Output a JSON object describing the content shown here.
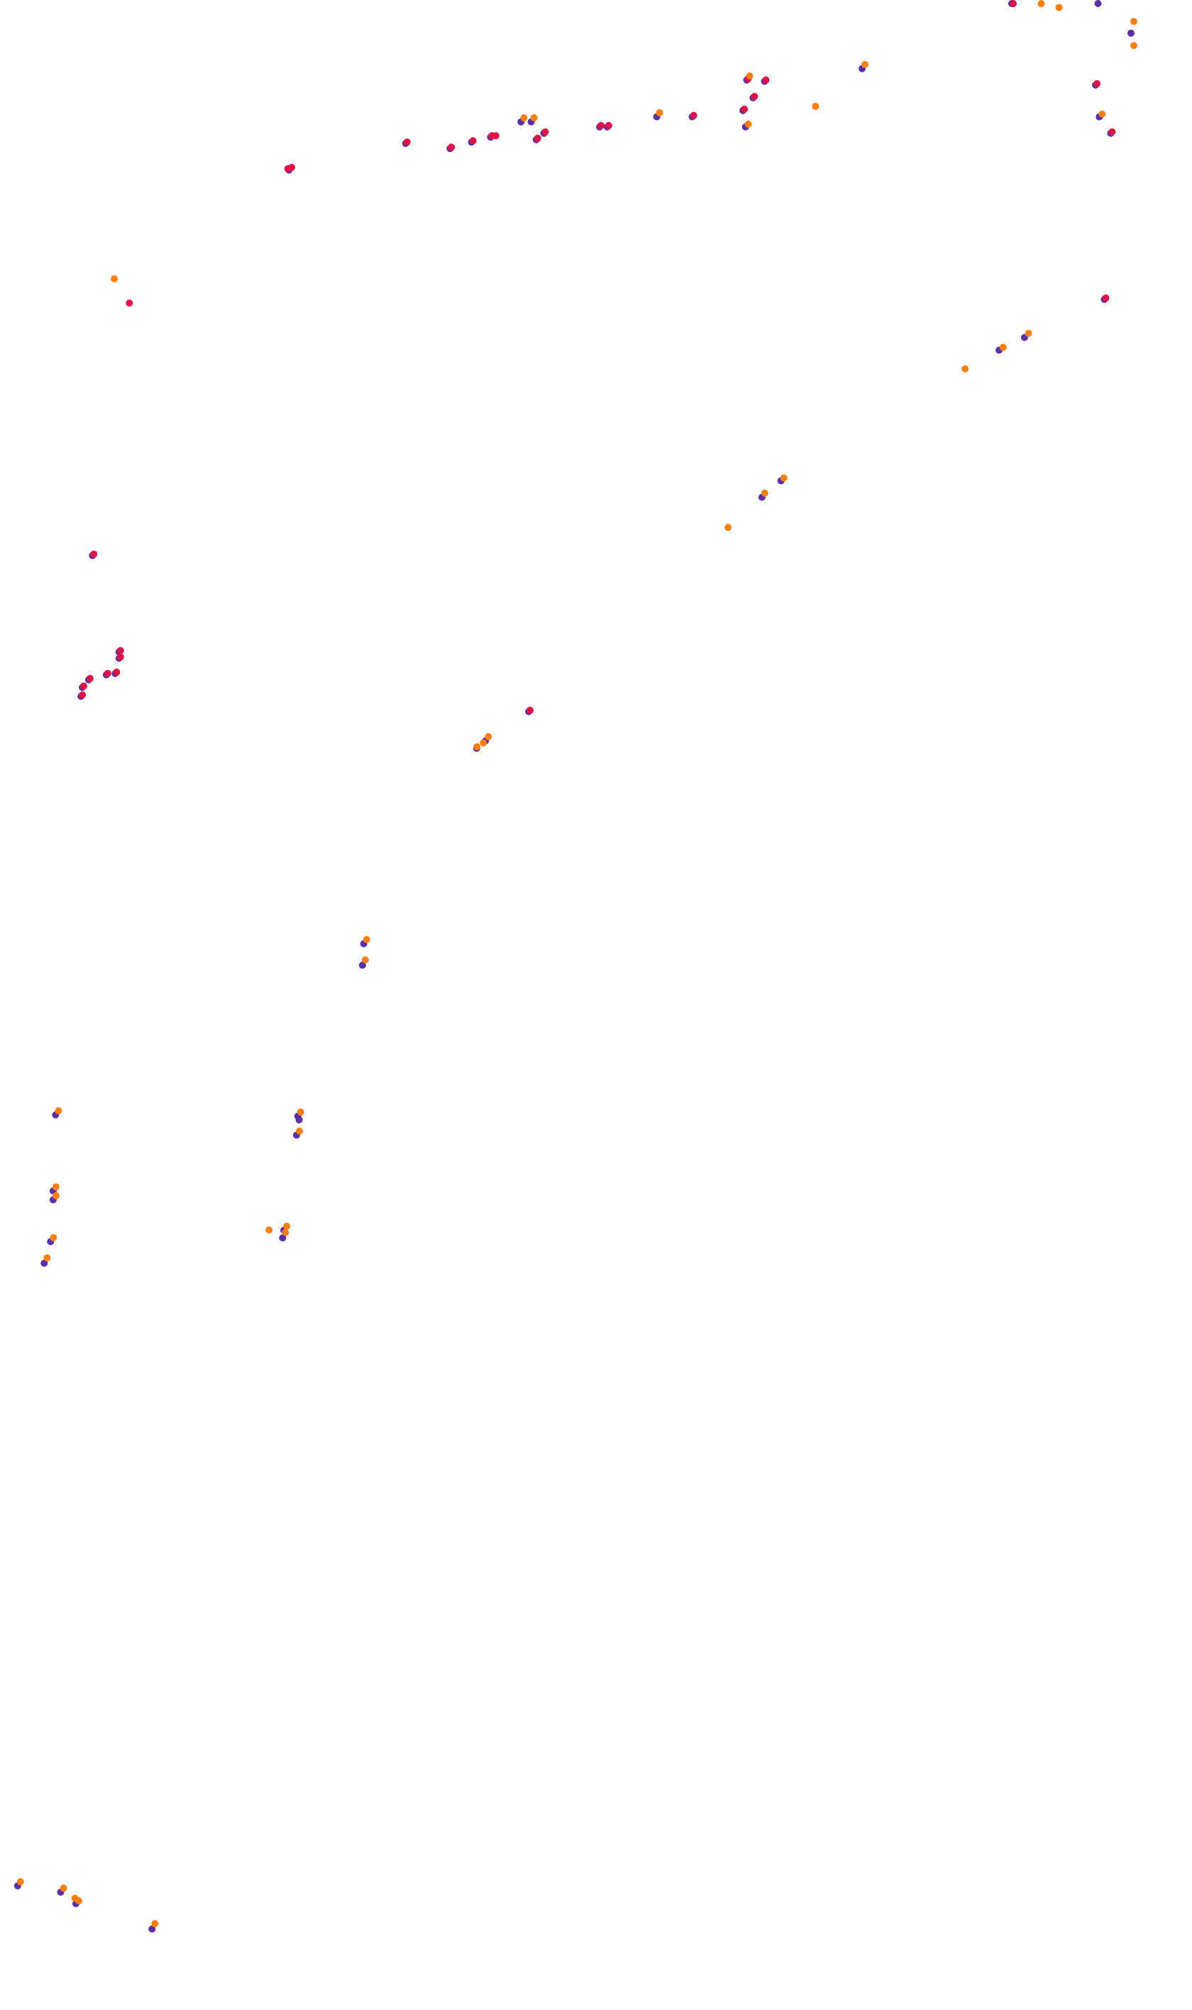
{
  "chart_data": {
    "type": "scatter",
    "title": "",
    "xlabel": "",
    "ylabel": "",
    "grid": false,
    "legend": "none",
    "xlim": [
      0,
      940
    ],
    "ylim": [
      0,
      1585
    ],
    "y_inverted": true,
    "colors": {
      "orange": "#ff7f0e",
      "purple": "#5b2fa6",
      "crimson": "#e0124a"
    },
    "series": [
      {
        "color_key": "purple",
        "points": [
          [
            799,
            1
          ],
          [
            867,
            0
          ],
          [
            893,
            25
          ],
          [
            865,
            66
          ],
          [
            868,
            91
          ],
          [
            877,
            104
          ],
          [
            681,
            53
          ],
          [
            590,
            62
          ],
          [
            604,
            63
          ],
          [
            595,
            76
          ],
          [
            587,
            86
          ],
          [
            589,
            99
          ],
          [
            519,
            91
          ],
          [
            547,
            91
          ],
          [
            474,
            99
          ],
          [
            480,
            99
          ],
          [
            412,
            95
          ],
          [
            420,
            95
          ],
          [
            424,
            109
          ],
          [
            430,
            104
          ],
          [
            356,
            116
          ],
          [
            373,
            111
          ],
          [
            388,
            107
          ],
          [
            321,
            112
          ],
          [
            229,
            133
          ],
          [
            872,
            235
          ],
          [
            789,
            275
          ],
          [
            809,
            265
          ],
          [
            602,
            391
          ],
          [
            617,
            378
          ],
          [
            74,
            437
          ],
          [
            95,
            513
          ],
          [
            95,
            518
          ],
          [
            71,
            535
          ],
          [
            66,
            541
          ],
          [
            65,
            548
          ],
          [
            85,
            531
          ],
          [
            92,
            530
          ],
          [
            418,
            560
          ],
          [
            377,
            589
          ],
          [
            384,
            583
          ],
          [
            288,
            743
          ],
          [
            287,
            760
          ],
          [
            45,
            878
          ],
          [
            236,
            879
          ],
          [
            237,
            882
          ],
          [
            235,
            894
          ],
          [
            43,
            938
          ],
          [
            43,
            945
          ],
          [
            41,
            978
          ],
          [
            36,
            995
          ],
          [
            225,
            969
          ],
          [
            224,
            975
          ],
          [
            15,
            1486
          ],
          [
            49,
            1491
          ],
          [
            61,
            1500
          ],
          [
            121,
            1520
          ]
        ]
      },
      {
        "color_key": "crimson",
        "points": [
          [
            799,
            1
          ],
          [
            865,
            66
          ],
          [
            877,
            104
          ],
          [
            590,
            62
          ],
          [
            604,
            63
          ],
          [
            595,
            76
          ],
          [
            587,
            86
          ],
          [
            547,
            91
          ],
          [
            474,
            99
          ],
          [
            480,
            99
          ],
          [
            424,
            109
          ],
          [
            430,
            104
          ],
          [
            356,
            116
          ],
          [
            373,
            111
          ],
          [
            388,
            107
          ],
          [
            391,
            107
          ],
          [
            321,
            112
          ],
          [
            227,
            133
          ],
          [
            230,
            132
          ],
          [
            102,
            239
          ],
          [
            872,
            235
          ],
          [
            74,
            437
          ],
          [
            95,
            513
          ],
          [
            95,
            518
          ],
          [
            71,
            535
          ],
          [
            66,
            541
          ],
          [
            65,
            548
          ],
          [
            85,
            531
          ],
          [
            92,
            530
          ],
          [
            418,
            560
          ]
        ]
      },
      {
        "color_key": "orange",
        "points": [
          [
            820,
            4
          ],
          [
            834,
            7
          ],
          [
            893,
            18
          ],
          [
            893,
            37
          ],
          [
            868,
            91
          ],
          [
            681,
            52
          ],
          [
            642,
            85
          ],
          [
            590,
            61
          ],
          [
            589,
            99
          ],
          [
            519,
            90
          ],
          [
            412,
            94
          ],
          [
            420,
            94
          ],
          [
            89,
            221
          ],
          [
            760,
            292
          ],
          [
            790,
            275
          ],
          [
            810,
            264
          ],
          [
            573,
            417
          ],
          [
            602,
            390
          ],
          [
            617,
            378
          ],
          [
            375,
            590
          ],
          [
            380,
            587
          ],
          [
            384,
            582
          ],
          [
            288,
            742
          ],
          [
            287,
            758
          ],
          [
            45,
            877
          ],
          [
            236,
            878
          ],
          [
            235,
            893
          ],
          [
            43,
            937
          ],
          [
            43,
            944
          ],
          [
            41,
            977
          ],
          [
            36,
            993
          ],
          [
            211,
            971
          ],
          [
            225,
            968
          ],
          [
            224,
            973
          ],
          [
            15,
            1485
          ],
          [
            49,
            1490
          ],
          [
            58,
            1498
          ],
          [
            61,
            1500
          ],
          [
            121,
            1518
          ]
        ]
      }
    ]
  }
}
